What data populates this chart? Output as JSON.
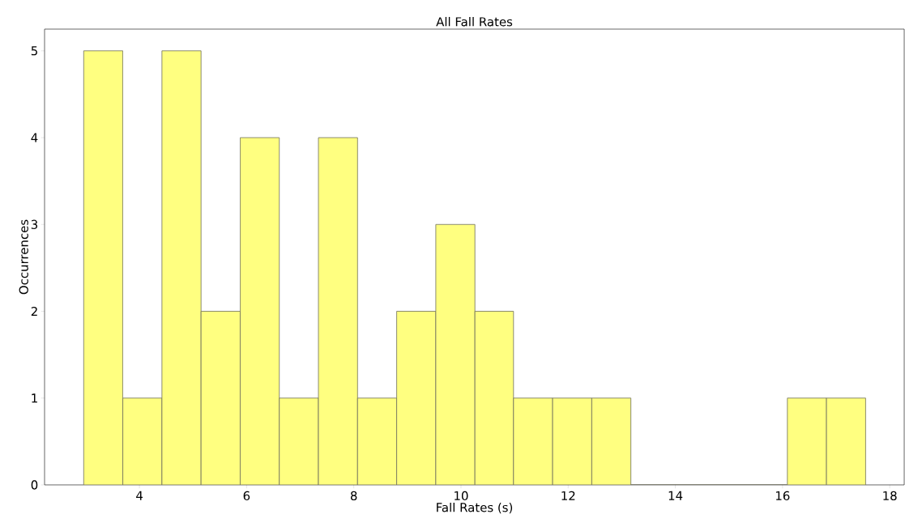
{
  "chart_data": {
    "type": "histogram",
    "title": "All Fall Rates",
    "xlabel": "Fall Rates (s)",
    "ylabel": "Occurrences",
    "bins": [
      2.96,
      3.69,
      4.42,
      5.15,
      5.88,
      6.61,
      7.34,
      8.07,
      8.8,
      9.53,
      10.26,
      10.98,
      11.71,
      12.44,
      13.17,
      16.09,
      16.82,
      17.55
    ],
    "values": [
      5,
      1,
      5,
      2,
      4,
      1,
      4,
      1,
      2,
      3,
      2,
      1,
      1,
      1,
      0,
      1,
      1
    ],
    "color": "#ffff80",
    "xlim": [
      2.23,
      18.27
    ],
    "ylim": [
      0,
      5.25
    ],
    "xticks": [
      4,
      6,
      8,
      10,
      12,
      14,
      16,
      18
    ],
    "yticks": [
      0,
      1,
      2,
      3,
      4,
      5
    ]
  }
}
